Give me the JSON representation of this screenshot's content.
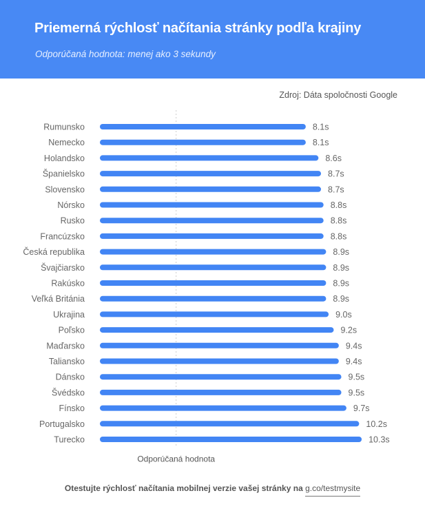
{
  "header": {
    "title": "Priemerná rýchlosť načítania stránky podľa krajiny",
    "subtitle": "Odporúčaná hodnota: menej ako 3 sekundy"
  },
  "source": "Zdroj: Dáta spoločnosti Google",
  "footer": {
    "text": "Otestujte rýchlosť načítania mobilnej verzie vašej stránky na",
    "link": "g.co/testmysite"
  },
  "colors": {
    "header": "#4889f4",
    "bar": "#4285f4",
    "label": "#666666",
    "reference_line": "#cccccc"
  },
  "chart_data": {
    "type": "bar",
    "orientation": "horizontal",
    "title": "Priemerná rýchlosť načítania stránky podľa krajiny",
    "xlabel": "",
    "ylabel": "",
    "unit": "s",
    "xlim": [
      0,
      10.3
    ],
    "grid": false,
    "categories": [
      "Rumunsko",
      "Nemecko",
      "Holandsko",
      "Španielsko",
      "Slovensko",
      "Nórsko",
      "Rusko",
      "Francúzsko",
      "Česká republika",
      "Švajčiarsko",
      "Rakúsko",
      "Veľká Británia",
      "Ukrajina",
      "Poľsko",
      "Maďarsko",
      "Taliansko",
      "Dánsko",
      "Švédsko",
      "Fínsko",
      "Portugalsko",
      "Turecko"
    ],
    "values": [
      8.1,
      8.1,
      8.6,
      8.7,
      8.7,
      8.8,
      8.8,
      8.8,
      8.9,
      8.9,
      8.9,
      8.9,
      9.0,
      9.2,
      9.4,
      9.4,
      9.5,
      9.5,
      9.7,
      10.2,
      10.3
    ],
    "value_labels": [
      "8.1s",
      "8.1s",
      "8.6s",
      "8.7s",
      "8.7s",
      "8.8s",
      "8.8s",
      "8.8s",
      "8.9s",
      "8.9s",
      "8.9s",
      "8.9s",
      "9.0s",
      "9.2s",
      "9.4s",
      "9.4s",
      "9.5s",
      "9.5s",
      "9.7s",
      "10.2s",
      "10.3s"
    ],
    "reference_line": {
      "value": 3,
      "label": "Odporúčaná hodnota"
    }
  }
}
